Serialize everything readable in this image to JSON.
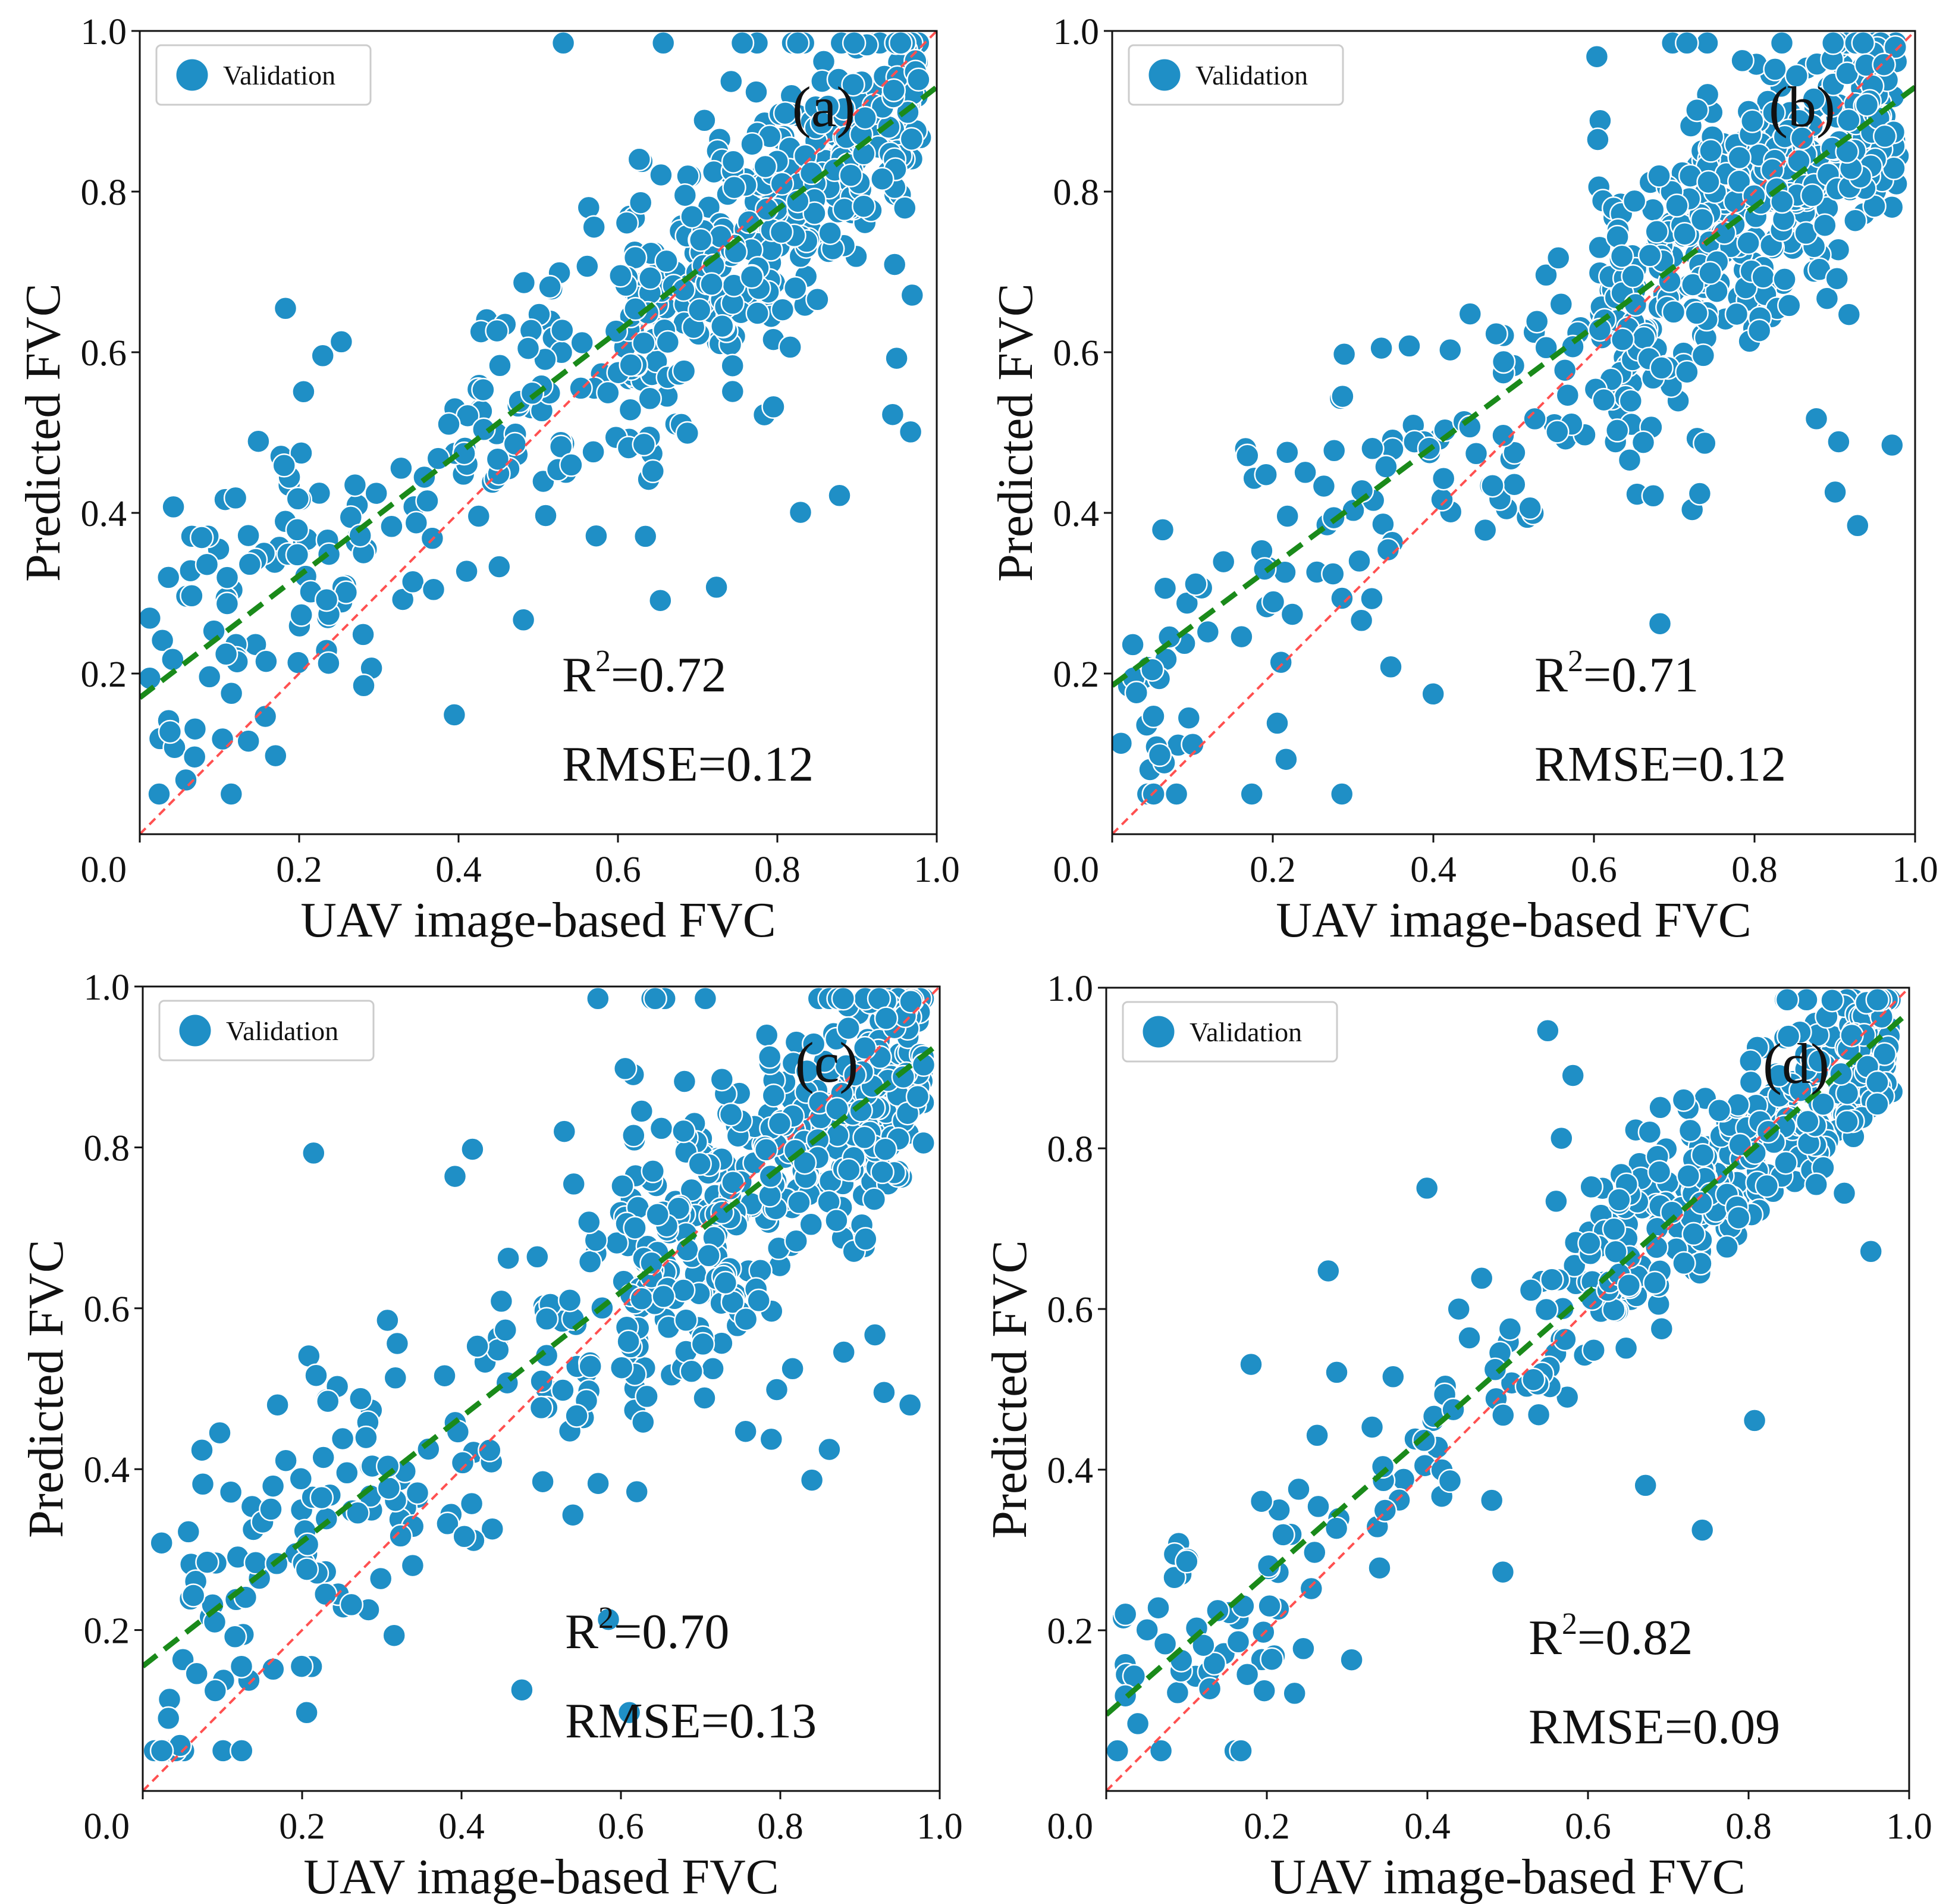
{
  "chart_data": [
    {
      "type": "scatter",
      "panel_label": "(a)",
      "xlabel": "UAV image-based FVC",
      "ylabel": "Predicted FVC",
      "xlim": [
        0.0,
        1.0
      ],
      "ylim": [
        0.0,
        1.0
      ],
      "xticks": [
        "0.2",
        "0.4",
        "0.6",
        "0.8",
        "1.0"
      ],
      "yticks": [
        "0.2",
        "0.4",
        "0.6",
        "0.8",
        "1.0"
      ],
      "origin_label": "0.0",
      "legend": [
        "Validation"
      ],
      "legend_position": "top-left",
      "r2_prefix": "R",
      "r2_sup": "2",
      "r2_value": "=0.72",
      "rmse_text": "RMSE=0.12",
      "fit_line": {
        "intercept": 0.17,
        "slope": 0.76,
        "color": "#1a8a1a"
      },
      "one_to_one_line": {
        "color": "#ff5050"
      },
      "point_color": "#1f8fc6",
      "n_points": 600,
      "seed": 11,
      "residual_sd": 0.11,
      "outlier_fraction": 0.04,
      "x_distribution": "skewed toward high values (0.7-0.97)"
    },
    {
      "type": "scatter",
      "panel_label": "(b)",
      "xlabel": "UAV image-based FVC",
      "ylabel": "Predicted FVC",
      "xlim": [
        0.0,
        1.0
      ],
      "ylim": [
        0.0,
        1.0
      ],
      "xticks": [
        "0.2",
        "0.4",
        "0.6",
        "0.8",
        "1.0"
      ],
      "yticks": [
        "0.2",
        "0.4",
        "0.6",
        "0.8",
        "1.0"
      ],
      "origin_label": "0.0",
      "legend": [
        "Validation"
      ],
      "legend_position": "top-left",
      "r2_prefix": "R",
      "r2_sup": "2",
      "r2_value": "=0.71",
      "rmse_text": "RMSE=0.12",
      "fit_line": {
        "intercept": 0.185,
        "slope": 0.745,
        "color": "#1a8a1a"
      },
      "one_to_one_line": {
        "color": "#ff5050"
      },
      "point_color": "#1f8fc6",
      "n_points": 600,
      "seed": 29,
      "residual_sd": 0.11,
      "outlier_fraction": 0.04,
      "x_distribution": "skewed toward high values (0.7-0.97)"
    },
    {
      "type": "scatter",
      "panel_label": "(c)",
      "xlabel": "UAV image-based FVC",
      "ylabel": "Predicted FVC",
      "xlim": [
        0.0,
        1.0
      ],
      "ylim": [
        0.0,
        1.0
      ],
      "xticks": [
        "0.2",
        "0.4",
        "0.6",
        "0.8",
        "1.0"
      ],
      "yticks": [
        "0.2",
        "0.4",
        "0.6",
        "0.8",
        "1.0"
      ],
      "origin_label": "0.0",
      "legend": [
        "Validation"
      ],
      "legend_position": "top-left",
      "r2_prefix": "R",
      "r2_sup": "2",
      "r2_value": "=0.70",
      "rmse_text": "RMSE=0.13",
      "fit_line": {
        "intercept": 0.155,
        "slope": 0.775,
        "color": "#1a8a1a"
      },
      "one_to_one_line": {
        "color": "#ff5050"
      },
      "point_color": "#1f8fc6",
      "n_points": 600,
      "seed": 47,
      "residual_sd": 0.115,
      "outlier_fraction": 0.04,
      "x_distribution": "skewed toward high values (0.7-0.97)"
    },
    {
      "type": "scatter",
      "panel_label": "(d)",
      "xlabel": "UAV image-based FVC",
      "ylabel": "Predicted FVC",
      "xlim": [
        0.0,
        1.0
      ],
      "ylim": [
        0.0,
        1.0
      ],
      "xticks": [
        "0.2",
        "0.4",
        "0.6",
        "0.8",
        "1.0"
      ],
      "yticks": [
        "0.2",
        "0.4",
        "0.6",
        "0.8",
        "1.0"
      ],
      "origin_label": "0.0",
      "legend": [
        "Validation"
      ],
      "legend_position": "top-left",
      "r2_prefix": "R",
      "r2_sup": "2",
      "r2_value": "=0.82",
      "rmse_text": "RMSE=0.09",
      "fit_line": {
        "intercept": 0.095,
        "slope": 0.875,
        "color": "#1a8a1a"
      },
      "one_to_one_line": {
        "color": "#ff5050"
      },
      "point_color": "#1f8fc6",
      "n_points": 500,
      "seed": 83,
      "residual_sd": 0.085,
      "outlier_fraction": 0.03,
      "x_distribution": "skewed toward high values (0.7-0.97)"
    }
  ]
}
